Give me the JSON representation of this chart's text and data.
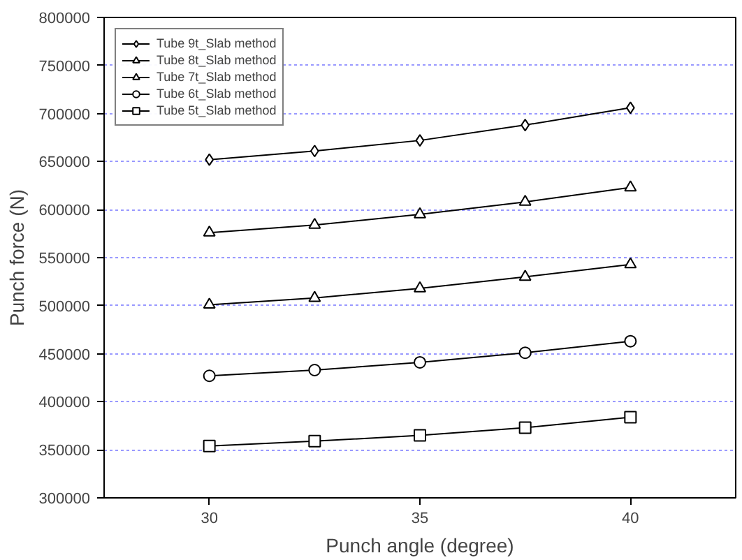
{
  "chart_data": {
    "type": "line",
    "xlabel": "Punch angle (degree)",
    "ylabel": "Punch force (N)",
    "x": [
      30,
      32.5,
      35,
      37.5,
      40
    ],
    "xlim": [
      27.5,
      42.5
    ],
    "xticks": [
      30,
      35,
      40
    ],
    "ylim": [
      300000,
      800000
    ],
    "yticks": [
      300000,
      350000,
      400000,
      450000,
      500000,
      550000,
      600000,
      650000,
      700000,
      750000,
      800000
    ],
    "grid": "y",
    "legend": "top left",
    "line_style": "solid",
    "series": [
      {
        "name": "Tube 9t_Slab method",
        "color": "#000000",
        "marker": "diamond",
        "values": [
          652000,
          661000,
          672000,
          688000,
          706000
        ]
      },
      {
        "name": "Tube 8t_Slab method",
        "color": "#000000",
        "marker": "triangle",
        "values": [
          576000,
          584000,
          595000,
          608000,
          623000
        ]
      },
      {
        "name": "Tube 7t_Slab method",
        "color": "#000000",
        "marker": "triangle",
        "values": [
          501000,
          508000,
          518000,
          530000,
          543000
        ]
      },
      {
        "name": "Tube 6t_Slab method",
        "color": "#000000",
        "marker": "circle",
        "values": [
          427000,
          433000,
          441000,
          451000,
          463000
        ]
      },
      {
        "name": "Tube 5t_Slab method",
        "color": "#000000",
        "marker": "square",
        "values": [
          354000,
          359000,
          365000,
          373000,
          384000
        ]
      }
    ]
  }
}
